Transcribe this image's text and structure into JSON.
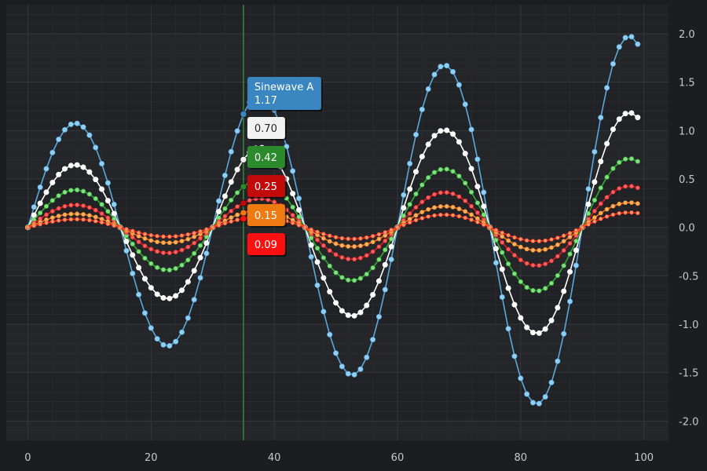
{
  "chart_data": {
    "type": "line",
    "title": "",
    "xlabel": "",
    "ylabel": "",
    "xlim": [
      -3.5,
      104
    ],
    "ylim": [
      -2.2,
      2.3
    ],
    "x_ticks": [
      0,
      20,
      40,
      60,
      80,
      100
    ],
    "x_tick_labels": [
      "0",
      "20",
      "40",
      "60",
      "80",
      "100"
    ],
    "y_ticks": [
      2.0,
      1.5,
      1.0,
      0.5,
      0.0,
      -0.5,
      -1.0,
      -1.5,
      -2.0
    ],
    "y_tick_labels": [
      "2.0",
      "1.5",
      "1.0",
      "0.5",
      "0.0",
      "-0.5",
      "-1.0",
      "-1.5",
      "-2.0"
    ],
    "x_axis_position": "bottom",
    "y_axis_position": "right",
    "grid": true,
    "cursor_x": 35,
    "colors": {
      "background": "#1c1d20",
      "plot_background": "#212226",
      "band": "#25262a",
      "grid_major": "#34363b",
      "grid_minor": "#2a2b2f",
      "cursor": "#3f9e3f",
      "tick_text": "#c8c8c8"
    },
    "series": [
      {
        "name": "Sinewave A",
        "color": "#5aa8dc",
        "marker": "#8ecff5",
        "amplitude": 1.0,
        "point_size": 3.2
      },
      {
        "color": "#ffffff",
        "marker": "#ffffff",
        "amplitude": 0.6,
        "point_size": 3.2
      },
      {
        "color": "#32a832",
        "marker": "#7fe07f",
        "amplitude": 0.36,
        "point_size": 2.8
      },
      {
        "color": "#d62020",
        "marker": "#ff6060",
        "amplitude": 0.216,
        "point_size": 2.6
      },
      {
        "color": "#f07a18",
        "marker": "#ffb060",
        "amplitude": 0.13,
        "point_size": 2.6
      },
      {
        "color": "#ff2a2a",
        "marker": "#ff9b5c",
        "amplitude": 0.078,
        "point_size": 2.4
      }
    ],
    "generator": {
      "points": 100,
      "wavelength": 30,
      "growth": 0.01
    },
    "tooltips": [
      {
        "label": "Sinewave A",
        "value": "1.17",
        "bg": "#3a86c0",
        "fg": "#ffffff",
        "y_val": 1.17
      },
      {
        "value": "0.70",
        "bg": "#f2f2f2",
        "fg": "#222222",
        "y_val": 0.7
      },
      {
        "value": "0.42",
        "bg": "#2b8a2b",
        "fg": "#ffffff",
        "y_val": 0.42
      },
      {
        "value": "0.25",
        "bg": "#c20a0a",
        "fg": "#ffffff",
        "y_val": 0.25
      },
      {
        "value": "0.15",
        "bg": "#f07a12",
        "fg": "#ffffff",
        "y_val": 0.15
      },
      {
        "value": "0.09",
        "bg": "#ff1010",
        "fg": "#ffffff",
        "y_val": 0.09
      }
    ]
  }
}
